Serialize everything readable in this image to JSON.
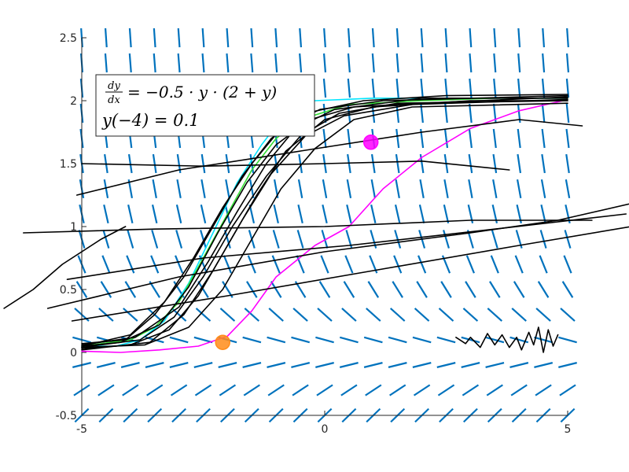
{
  "chart_data": {
    "type": "line",
    "title": "",
    "xlabel": "",
    "ylabel": "",
    "xlim": [
      -5,
      5
    ],
    "ylim": [
      -0.5,
      2.5
    ],
    "x_ticks": [
      -5,
      0,
      5
    ],
    "y_ticks": [
      -0.5,
      0,
      0.5,
      1,
      1.5,
      2,
      2.5
    ],
    "x_tick_labels": [
      "-5",
      "0",
      "5"
    ],
    "y_tick_labels": [
      "-0.5",
      "0",
      "0.5",
      "1",
      "1.5",
      "2",
      "2.5"
    ],
    "grid": false,
    "slope_field": {
      "equation": "dy/dx = -0.5*y*(2+y)",
      "color": "#0072BD",
      "nx": 21,
      "ny": 16
    },
    "annotation": {
      "equation_line": "dy/dx = −0.5 · y · (2 + y)",
      "dy": "dy",
      "dx": "dx",
      "rhs": "= −0.5 · y · (2 + y)",
      "initial_condition": "y(−4) = 0.1",
      "placement": "top-left"
    },
    "series": [
      {
        "color": "#00E5FF",
        "points": [
          [
            -5,
            0.05
          ],
          [
            -4.3,
            0.05
          ],
          [
            -3.8,
            0.1
          ],
          [
            -3.3,
            0.25
          ],
          [
            -2.8,
            0.55
          ],
          [
            -2.3,
            0.95
          ],
          [
            -1.8,
            1.35
          ],
          [
            -1.3,
            1.65
          ],
          [
            -0.8,
            1.9
          ],
          [
            -0.2,
            2.0
          ],
          [
            1,
            2.02
          ],
          [
            3,
            2.02
          ],
          [
            5,
            2.02
          ]
        ]
      },
      {
        "color": "#33DD33",
        "points": [
          [
            -5,
            0.05
          ],
          [
            -4,
            0.1
          ],
          [
            -3.5,
            0.2
          ],
          [
            -3,
            0.4
          ],
          [
            -2.5,
            0.75
          ],
          [
            -2,
            1.1
          ],
          [
            -1.5,
            1.45
          ],
          [
            -1,
            1.7
          ],
          [
            -0.5,
            1.85
          ],
          [
            0.5,
            1.97
          ],
          [
            2,
            2.0
          ],
          [
            3.5,
            2.02
          ],
          [
            5,
            2.02
          ]
        ]
      },
      {
        "color": "#FF00FF",
        "points": [
          [
            -5,
            0.01
          ],
          [
            -4.2,
            0.0
          ],
          [
            -3.4,
            0.02
          ],
          [
            -2.6,
            0.05
          ],
          [
            -2,
            0.13
          ],
          [
            -1.5,
            0.33
          ],
          [
            -1,
            0.6
          ],
          [
            -0.2,
            0.85
          ],
          [
            0.5,
            1.0
          ],
          [
            1.2,
            1.3
          ],
          [
            2,
            1.55
          ],
          [
            3,
            1.78
          ],
          [
            4,
            1.92
          ],
          [
            4.9,
            2.0
          ]
        ]
      },
      {
        "color": "#000000",
        "points": [
          [
            -5,
            0.05
          ],
          [
            -4.2,
            0.08
          ],
          [
            -3.4,
            0.22
          ],
          [
            -2.8,
            0.52
          ],
          [
            -2.2,
            0.95
          ],
          [
            -1.6,
            1.35
          ],
          [
            -1,
            1.65
          ],
          [
            -0.3,
            1.85
          ],
          [
            0.6,
            1.95
          ],
          [
            2,
            1.98
          ],
          [
            5,
            2.03
          ]
        ]
      },
      {
        "color": "#000000",
        "points": [
          [
            -5,
            0.03
          ],
          [
            -4,
            0.06
          ],
          [
            -3.2,
            0.18
          ],
          [
            -2.6,
            0.45
          ],
          [
            -2,
            0.85
          ],
          [
            -1.4,
            1.25
          ],
          [
            -0.8,
            1.6
          ],
          [
            0,
            1.85
          ],
          [
            1,
            1.95
          ],
          [
            3,
            2.0
          ],
          [
            5,
            2.0
          ]
        ]
      },
      {
        "color": "#000000",
        "points": [
          [
            -5,
            0.07
          ],
          [
            -4.1,
            0.1
          ],
          [
            -3.5,
            0.3
          ],
          [
            -2.9,
            0.6
          ],
          [
            -2.3,
            1.0
          ],
          [
            -1.7,
            1.4
          ],
          [
            -1.1,
            1.7
          ],
          [
            -0.4,
            1.9
          ],
          [
            0.8,
            2.0
          ],
          [
            2.5,
            2.04
          ],
          [
            5,
            2.05
          ]
        ]
      },
      {
        "color": "#000000",
        "points": [
          [
            -5,
            0.04
          ],
          [
            -3.8,
            0.1
          ],
          [
            -3.1,
            0.28
          ],
          [
            -2.5,
            0.6
          ],
          [
            -1.9,
            1.0
          ],
          [
            -1.2,
            1.4
          ],
          [
            -0.5,
            1.72
          ],
          [
            0.3,
            1.9
          ],
          [
            1.5,
            1.98
          ],
          [
            5,
            2.0
          ]
        ]
      },
      {
        "color": "#000000",
        "points": [
          [
            -5,
            0.06
          ],
          [
            -3.9,
            0.12
          ],
          [
            -3,
            0.36
          ],
          [
            -2.4,
            0.72
          ],
          [
            -1.8,
            1.12
          ],
          [
            -1.2,
            1.5
          ],
          [
            -0.6,
            1.78
          ],
          [
            0.2,
            1.93
          ],
          [
            2,
            2.02
          ],
          [
            5,
            2.02
          ]
        ]
      },
      {
        "color": "#000000",
        "points": [
          [
            -5,
            0.02
          ],
          [
            -3.6,
            0.08
          ],
          [
            -2.9,
            0.3
          ],
          [
            -2.3,
            0.65
          ],
          [
            -1.7,
            1.05
          ],
          [
            -1.1,
            1.42
          ],
          [
            -0.4,
            1.72
          ],
          [
            0.4,
            1.88
          ],
          [
            1.8,
            1.97
          ],
          [
            5,
            2.01
          ]
        ]
      },
      {
        "color": "#000000",
        "points": [
          [
            -5,
            0.05
          ],
          [
            -4.0,
            0.14
          ],
          [
            -3.3,
            0.4
          ],
          [
            -2.7,
            0.75
          ],
          [
            -2.1,
            1.15
          ],
          [
            -1.5,
            1.5
          ],
          [
            -0.9,
            1.78
          ],
          [
            -0.1,
            1.93
          ],
          [
            1.2,
            2.0
          ],
          [
            5,
            2.04
          ]
        ]
      },
      {
        "color": "#000000",
        "points": [
          [
            -5,
            0.04
          ],
          [
            -3.7,
            0.06
          ],
          [
            -2.8,
            0.2
          ],
          [
            -2.1,
            0.5
          ],
          [
            -1.5,
            0.9
          ],
          [
            -0.9,
            1.3
          ],
          [
            -0.2,
            1.62
          ],
          [
            0.6,
            1.85
          ],
          [
            1.8,
            1.95
          ],
          [
            5,
            1.98
          ]
        ]
      },
      {
        "color": "#000000",
        "points": [
          [
            -5.1,
            1.25
          ],
          [
            -3,
            1.45
          ],
          [
            -0.5,
            1.6
          ],
          [
            2,
            1.75
          ],
          [
            4,
            1.85
          ],
          [
            5.3,
            1.8
          ]
        ]
      },
      {
        "color": "#000000",
        "points": [
          [
            -5.7,
            0.35
          ],
          [
            -3,
            0.6
          ],
          [
            0,
            0.8
          ],
          [
            3,
            0.95
          ],
          [
            4.8,
            1.05
          ],
          [
            6.5,
            1.2
          ]
        ]
      },
      {
        "color": "#000000",
        "points": [
          [
            -5.2,
            0.25
          ],
          [
            -2,
            0.45
          ],
          [
            1,
            0.65
          ],
          [
            4,
            0.85
          ],
          [
            6.3,
            1.0
          ]
        ]
      },
      {
        "color": "#000000",
        "points": [
          [
            -6.2,
            0.95
          ],
          [
            -3.5,
            0.98
          ],
          [
            0,
            1.0
          ],
          [
            3,
            1.05
          ],
          [
            5.5,
            1.05
          ]
        ]
      },
      {
        "color": "#000000",
        "points": [
          [
            -5.3,
            0.58
          ],
          [
            -2.5,
            0.75
          ],
          [
            0.5,
            0.85
          ],
          [
            3.5,
            0.98
          ],
          [
            6.2,
            1.1
          ]
        ]
      },
      {
        "color": "#000000",
        "points": [
          [
            -5,
            1.5
          ],
          [
            -2.5,
            1.48
          ],
          [
            0,
            1.5
          ],
          [
            2,
            1.52
          ],
          [
            3.8,
            1.45
          ]
        ]
      },
      {
        "color": "#000000",
        "points": [
          [
            -6.6,
            0.35
          ],
          [
            -6,
            0.5
          ],
          [
            -5.4,
            0.7
          ],
          [
            -4.6,
            0.9
          ],
          [
            -4.1,
            1.0
          ]
        ]
      },
      {
        "color": "#000000",
        "points": [
          [
            2.7,
            0.12
          ],
          [
            2.9,
            0.07
          ],
          [
            3.0,
            0.12
          ],
          [
            3.2,
            0.04
          ],
          [
            3.35,
            0.15
          ],
          [
            3.5,
            0.06
          ],
          [
            3.65,
            0.14
          ],
          [
            3.8,
            0.04
          ],
          [
            3.95,
            0.12
          ],
          [
            4.05,
            0.02
          ],
          [
            4.2,
            0.16
          ],
          [
            4.3,
            0.06
          ],
          [
            4.4,
            0.2
          ],
          [
            4.5,
            0.0
          ],
          [
            4.6,
            0.18
          ],
          [
            4.7,
            0.05
          ],
          [
            4.8,
            0.14
          ]
        ]
      }
    ],
    "markers": [
      {
        "shape": "circle",
        "x": -2.1,
        "y": 0.08,
        "color": "#FF8C1A"
      },
      {
        "shape": "circle",
        "x": 0.95,
        "y": 1.67,
        "color": "#FF00FF"
      }
    ]
  }
}
